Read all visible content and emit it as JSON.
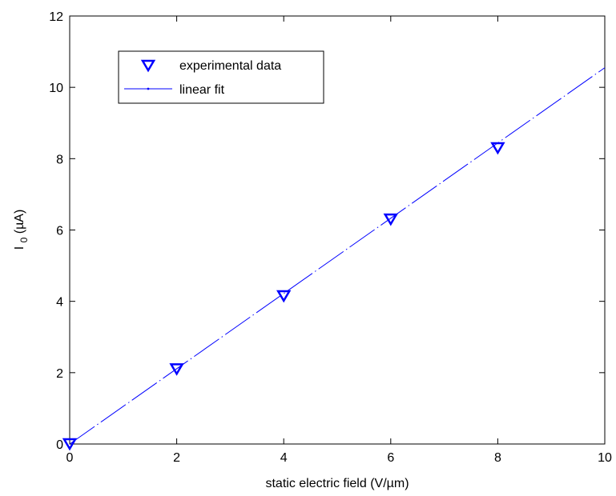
{
  "colors": {
    "series": "#0000ff",
    "axes": "#000000",
    "background": "#ffffff"
  },
  "chart_data": {
    "type": "scatter",
    "title": "",
    "xlabel": "static electric field (V/µm)",
    "ylabel_main": "I",
    "ylabel_sub": "0",
    "ylabel_rest": " (µA)",
    "xlim": [
      0,
      10
    ],
    "ylim": [
      0,
      12
    ],
    "xticks": [
      0,
      2,
      4,
      6,
      8,
      10
    ],
    "yticks": [
      0,
      2,
      4,
      6,
      8,
      10,
      12
    ],
    "grid": false,
    "legend_position": "top-left",
    "series": [
      {
        "name": "experimental data",
        "kind": "markers",
        "marker": "triangle-down",
        "x": [
          0,
          2,
          4,
          6,
          8
        ],
        "y": [
          0,
          2.1,
          4.15,
          6.3,
          8.3
        ]
      },
      {
        "name": "linear fit",
        "kind": "line",
        "line_style": "dash-dot",
        "x": [
          0,
          10
        ],
        "y": [
          0,
          10.55
        ]
      }
    ]
  }
}
